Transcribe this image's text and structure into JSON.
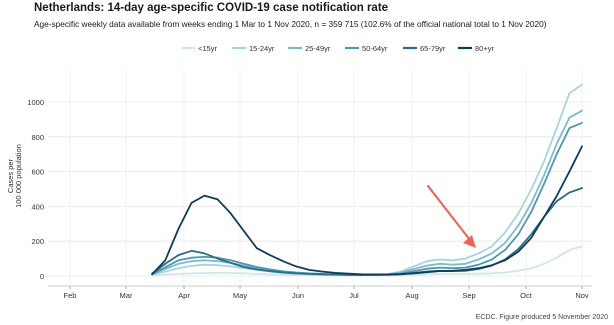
{
  "chart_data": {
    "type": "line",
    "title": "Netherlands: 14-day age-specific COVID-19 case notification rate",
    "subtitle": "Age-specific weekly data available from weeks ending 1 Mar to 1 Nov 2020, n = 359 715 (102.6% of the official national total to 1 Nov 2020)",
    "ylabel": "Cases per\n100 000 population",
    "xlabel": "",
    "x_tick_labels": [
      "Feb",
      "Mar",
      "Apr",
      "May",
      "Jun",
      "Jul",
      "Aug",
      "Sep",
      "Oct",
      "Nov"
    ],
    "y_ticks": [
      0,
      200,
      400,
      600,
      800,
      1000
    ],
    "ylim": [
      -40,
      1130
    ],
    "legend_position": "top-center",
    "grid": true,
    "weeks": [
      "2020-03-15",
      "2020-03-22",
      "2020-03-29",
      "2020-04-05",
      "2020-04-12",
      "2020-04-19",
      "2020-04-26",
      "2020-05-03",
      "2020-05-10",
      "2020-05-17",
      "2020-05-24",
      "2020-05-31",
      "2020-06-07",
      "2020-06-14",
      "2020-06-21",
      "2020-06-28",
      "2020-07-05",
      "2020-07-12",
      "2020-07-19",
      "2020-07-26",
      "2020-08-02",
      "2020-08-09",
      "2020-08-16",
      "2020-08-23",
      "2020-08-30",
      "2020-09-06",
      "2020-09-13",
      "2020-09-20",
      "2020-09-27",
      "2020-10-04",
      "2020-10-11",
      "2020-10-18",
      "2020-10-25",
      "2020-11-01"
    ],
    "series": [
      {
        "name": "<15yr",
        "color": "#cfe6ec",
        "values": [
          3,
          8,
          12,
          15,
          17,
          18,
          17,
          15,
          12,
          9,
          7,
          6,
          5,
          4,
          4,
          3,
          3,
          3,
          4,
          5,
          8,
          10,
          12,
          12,
          12,
          13,
          15,
          20,
          30,
          45,
          70,
          105,
          150,
          170
        ]
      },
      {
        "name": "15-24yr",
        "color": "#a9d3dd",
        "values": [
          8,
          25,
          45,
          58,
          65,
          62,
          55,
          45,
          35,
          25,
          18,
          13,
          10,
          8,
          6,
          5,
          5,
          6,
          10,
          25,
          55,
          85,
          95,
          90,
          100,
          130,
          170,
          250,
          360,
          500,
          660,
          850,
          1050,
          1100
        ]
      },
      {
        "name": "25-49yr",
        "color": "#7fbccb",
        "values": [
          10,
          40,
          70,
          85,
          90,
          85,
          75,
          60,
          45,
          32,
          23,
          17,
          13,
          10,
          8,
          7,
          6,
          7,
          10,
          20,
          40,
          60,
          70,
          65,
          70,
          95,
          130,
          190,
          290,
          420,
          580,
          760,
          910,
          950
        ]
      },
      {
        "name": "50-64yr",
        "color": "#4f97ae",
        "values": [
          12,
          50,
          90,
          105,
          110,
          105,
          90,
          70,
          52,
          38,
          27,
          20,
          15,
          12,
          9,
          7,
          6,
          6,
          8,
          14,
          28,
          42,
          48,
          45,
          48,
          65,
          95,
          150,
          240,
          370,
          530,
          700,
          850,
          880
        ]
      },
      {
        "name": "65-79yr",
        "color": "#2a6c89",
        "values": [
          15,
          70,
          120,
          145,
          130,
          100,
          75,
          52,
          38,
          28,
          20,
          15,
          12,
          10,
          8,
          7,
          6,
          6,
          7,
          10,
          18,
          26,
          30,
          28,
          30,
          40,
          60,
          95,
          155,
          240,
          340,
          430,
          480,
          505
        ]
      },
      {
        "name": "80+yr",
        "color": "#0f3d58",
        "values": [
          10,
          90,
          270,
          420,
          462,
          440,
          360,
          260,
          160,
          120,
          85,
          55,
          35,
          25,
          18,
          13,
          10,
          9,
          9,
          11,
          15,
          22,
          28,
          30,
          35,
          45,
          62,
          90,
          140,
          220,
          340,
          460,
          600,
          745
        ]
      }
    ]
  },
  "footer": {
    "credit": "ECDC. Figure produced 5 November 2020"
  },
  "annotation": {
    "arrow_color": "#e8675c"
  }
}
